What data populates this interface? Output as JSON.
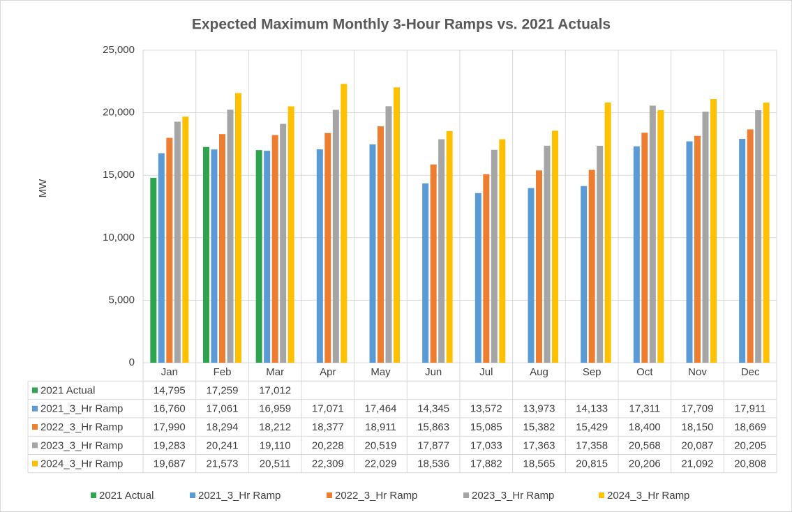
{
  "chart_data": {
    "type": "bar",
    "title": "Expected Maximum Monthly 3-Hour Ramps vs. 2021 Actuals",
    "y_label": "MW",
    "categories": [
      "Jan",
      "Feb",
      "Mar",
      "Apr",
      "May",
      "Jun",
      "Jul",
      "Aug",
      "Sep",
      "Oct",
      "Nov",
      "Dec"
    ],
    "ylim": [
      0,
      25000
    ],
    "yticks": [
      0,
      {
        "value": 5000,
        "label": "5,000"
      },
      {
        "value": 10000,
        "label": "10,000"
      },
      {
        "value": 15000,
        "label": "15,000"
      },
      {
        "value": 20000,
        "label": "20,000"
      },
      {
        "value": 25000,
        "label": "25,000"
      }
    ],
    "grid": true,
    "legend": "bottom",
    "data_table": true,
    "series": [
      {
        "name": "2021 Actual",
        "color": "#2ea44f",
        "values": [
          14795,
          17259,
          17012,
          null,
          null,
          null,
          null,
          null,
          null,
          null,
          null,
          null
        ],
        "value_labels": [
          "14,795",
          "17,259",
          "17,012",
          null,
          null,
          null,
          null,
          null,
          null,
          null,
          null,
          null
        ]
      },
      {
        "name": "2021_3_Hr Ramp",
        "color": "#5b9bd5",
        "values": [
          16760,
          17061,
          16959,
          17071,
          17464,
          14345,
          13572,
          13973,
          14133,
          17311,
          17709,
          17911
        ],
        "value_labels": [
          "16,760",
          "17,061",
          "16,959",
          "17,071",
          "17,464",
          "14,345",
          "13,572",
          "13,973",
          "14,133",
          "17,311",
          "17,709",
          "17,911"
        ]
      },
      {
        "name": "2022_3_Hr Ramp",
        "color": "#ed7d31",
        "values": [
          17990,
          18294,
          18212,
          18377,
          18911,
          15863,
          15085,
          15382,
          15429,
          18400,
          18150,
          18669
        ],
        "value_labels": [
          "17,990",
          "18,294",
          "18,212",
          "18,377",
          "18,911",
          "15,863",
          "15,085",
          "15,382",
          "15,429",
          "18,400",
          "18,150",
          "18,669"
        ]
      },
      {
        "name": "2023_3_Hr Ramp",
        "color": "#a5a5a5",
        "values": [
          19283,
          20241,
          19110,
          20228,
          20519,
          17877,
          17033,
          17363,
          17358,
          20568,
          20087,
          20205
        ],
        "value_labels": [
          "19,283",
          "20,241",
          "19,110",
          "20,228",
          "20,519",
          "17,877",
          "17,033",
          "17,363",
          "17,358",
          "20,568",
          "20,087",
          "20,205"
        ]
      },
      {
        "name": "2024_3_Hr Ramp",
        "color": "#ffc000",
        "values": [
          19687,
          21573,
          20511,
          22309,
          22029,
          18536,
          17882,
          18565,
          20815,
          20206,
          21092,
          20808
        ],
        "value_labels": [
          "19,687",
          "21,573",
          "20,511",
          "22,309",
          "22,029",
          "18,536",
          "17,882",
          "18,565",
          "20,815",
          "20,206",
          "21,092",
          "20,808"
        ]
      }
    ]
  }
}
